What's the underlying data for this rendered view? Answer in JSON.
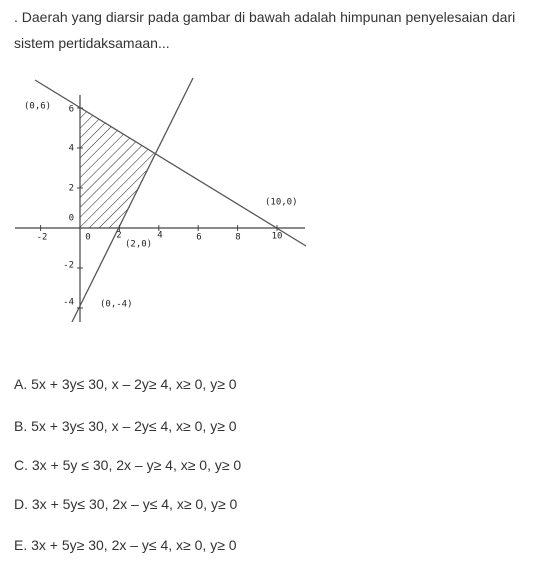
{
  "question": ". Daerah yang diarsir pada gambar di bawah adalah himpunan penyelesaian dari sistem pertidaksamaan...",
  "figure": {
    "x_tick_labels": [
      "-2",
      "0",
      "2",
      "4",
      "6",
      "8",
      "10"
    ],
    "y_tick_labels": [
      "6",
      "4",
      "2",
      "0",
      "-2",
      "-4"
    ],
    "point_labels": [
      "(0,6)",
      "(2,0)",
      "(10,0)",
      "(0,-4)"
    ]
  },
  "options": [
    "A. 5x + 3y≤ 30, x – 2y≥ 4, x≥ 0, y≥ 0",
    "B. 5x + 3y≤ 30, x – 2y≤ 4, x≥ 0, y≥ 0",
    "C. 3x + 5y ≤ 30, 2x – y≥ 4, x≥ 0, y≥ 0",
    "D. 3x + 5y≤ 30, 2x – y≤ 4, x≥ 0, y≥ 0",
    "E. 3x + 5y≥ 30, 2x – y≤ 4, x≥ 0, y≥ 0"
  ]
}
